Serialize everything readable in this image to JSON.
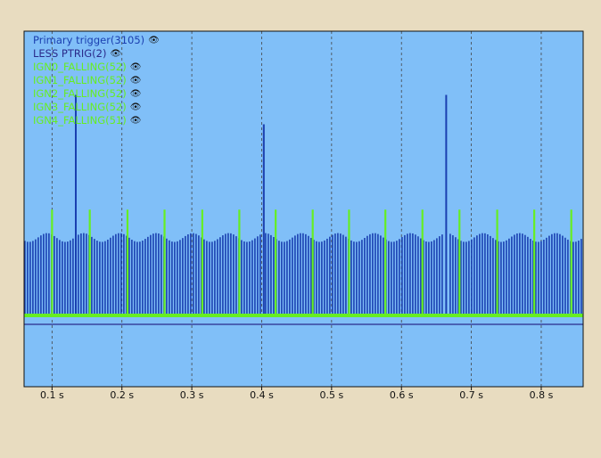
{
  "colors": {
    "background": "#e8dcc0",
    "plot_bg": "#80bff8",
    "primary": "#1a3fb0",
    "ign": "#66ee22",
    "less": "#2a2a8a",
    "grid": "#444444",
    "axis": "#111111"
  },
  "legend": [
    {
      "label": "Primary trigger(3105)",
      "color": "#1a3fb0",
      "icon": "eye-icon"
    },
    {
      "label": "LESS PTRIG(2)",
      "color": "#2a2a8a",
      "icon": "eye-icon"
    },
    {
      "label": "IGN0_FALLING(52)",
      "color": "#66ee22",
      "icon": "eye-icon"
    },
    {
      "label": "IGN1_FALLING(52)",
      "color": "#66ee22",
      "icon": "eye-icon"
    },
    {
      "label": "IGN2_FALLING(52)",
      "color": "#66ee22",
      "icon": "eye-icon"
    },
    {
      "label": "IGN3_FALLING(52)",
      "color": "#66ee22",
      "icon": "eye-icon"
    },
    {
      "label": "IGN4_FALLING(51)",
      "color": "#66ee22",
      "icon": "eye-icon"
    }
  ],
  "chart_data": {
    "type": "bar",
    "xlabel": "",
    "ylabel": "",
    "xlim": [
      0.06,
      0.86
    ],
    "ylim": [
      0,
      1
    ],
    "grid": true,
    "legend_position": "top-left",
    "ticks": [
      {
        "value": 0.1,
        "label": "0.1 s"
      },
      {
        "value": 0.2,
        "label": "0.2 s"
      },
      {
        "value": 0.3,
        "label": "0.3 s"
      },
      {
        "value": 0.4,
        "label": "0.4 s"
      },
      {
        "value": 0.5,
        "label": "0.5 s"
      },
      {
        "value": 0.6,
        "label": "0.6 s"
      },
      {
        "value": 0.7,
        "label": "0.7 s"
      },
      {
        "value": 0.8,
        "label": "0.8 s"
      }
    ],
    "primary_gaps": [
      [
        0.4,
        0.405
      ],
      [
        0.659,
        0.668
      ]
    ],
    "primary_pulses_low": 0.25,
    "primary_pulses_high": 0.28,
    "primary_cycle_period": 0.052,
    "primary_tall_spikes": [
      {
        "x": 0.134,
        "y": 0.75
      },
      {
        "x": 0.403,
        "y": 0.65
      },
      {
        "x": 0.664,
        "y": 0.75
      }
    ],
    "ign_events": [
      0.1,
      0.154,
      0.208,
      0.261,
      0.315,
      0.368,
      0.42,
      0.473,
      0.525,
      0.577,
      0.63,
      0.683,
      0.737,
      0.79,
      0.843
    ],
    "ign_height": 0.36,
    "less_ptrig_level": -0.035
  }
}
